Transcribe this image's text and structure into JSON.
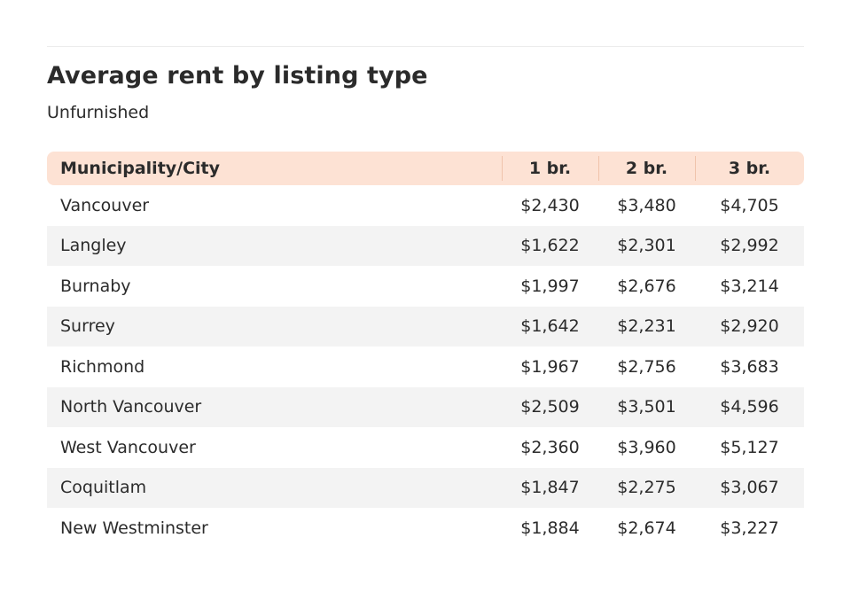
{
  "title": "Average rent by listing type",
  "subtitle": "Unfurnished",
  "chart_data": {
    "type": "table",
    "title": "Average rent by listing type",
    "subtitle": "Unfurnished",
    "columns": [
      "Municipality/City",
      "1 br.",
      "2 br.",
      "3 br."
    ],
    "rows": [
      [
        "Vancouver",
        "$2,430",
        "$3,480",
        "$4,705"
      ],
      [
        "Langley",
        "$1,622",
        "$2,301",
        "$2,992"
      ],
      [
        "Burnaby",
        "$1,997",
        "$2,676",
        "$3,214"
      ],
      [
        "Surrey",
        "$1,642",
        "$2,231",
        "$2,920"
      ],
      [
        "Richmond",
        "$1,967",
        "$2,756",
        "$3,683"
      ],
      [
        "North Vancouver",
        "$2,509",
        "$3,501",
        "$4,596"
      ],
      [
        "West Vancouver",
        "$2,360",
        "$3,960",
        "$5,127"
      ],
      [
        "Coquitlam",
        "$1,847",
        "$2,275",
        "$3,067"
      ],
      [
        "New Westminster",
        "$1,884",
        "$2,674",
        "$3,227"
      ]
    ]
  },
  "colors": {
    "header_bg": "#fde2d4",
    "stripe_bg": "#f3f3f3",
    "text": "#2b2b2b"
  }
}
